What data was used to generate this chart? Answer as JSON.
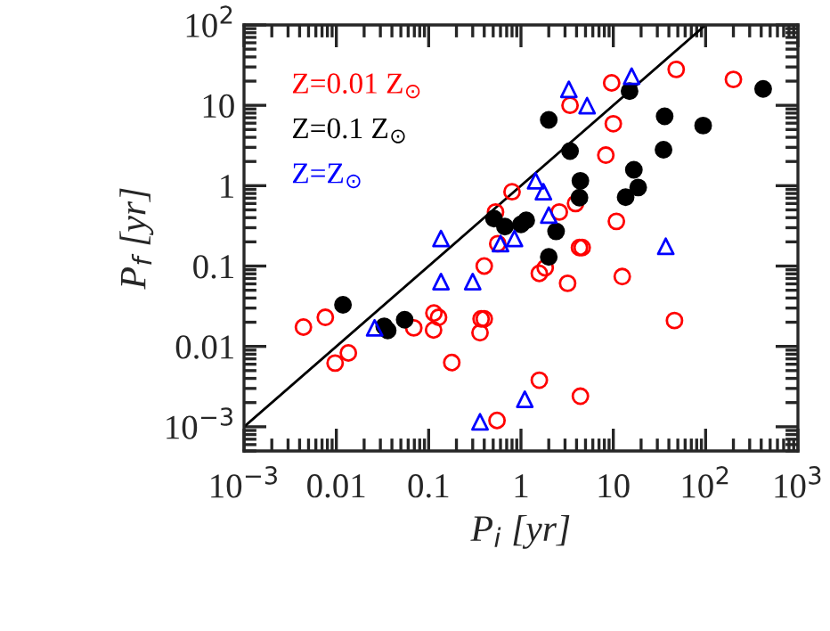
{
  "chart_data": {
    "type": "scatter",
    "xlabel": "P$_{i}$ [yr]",
    "ylabel": "P$_{f}$ [yr]",
    "log": "xy",
    "legend": "top left",
    "grid": false,
    "xlim": [
      0.001,
      1000
    ],
    "ylim": [
      0.0005,
      100
    ],
    "xticks": [
      {
        "value": 0.001,
        "label": "10$^{−3}$"
      },
      0.01,
      0.1,
      1,
      10,
      {
        "value": 100,
        "label": "10$^{2}$"
      },
      {
        "value": 1000,
        "label": "10$^{3}$"
      }
    ],
    "yticks": [
      {
        "value": 0.001,
        "label": "10$^{−3}$"
      },
      0.01,
      0.1,
      1,
      10,
      {
        "value": 100,
        "label": "10$^{2}$"
      }
    ],
    "series": [
      {
        "name": "Z=0.01 Z$_{⊙}$",
        "color": "#ff0000",
        "marker": "circle",
        "x": [
          3.4,
          0.8,
          0.53,
          0.56,
          0.4,
          1.58,
          1.83,
          3.2,
          2.6,
          3.9,
          4.3,
          4.6,
          48,
          200,
          9.6,
          10,
          8.3,
          10.8,
          12.5,
          0.0044,
          0.0076,
          0.0097,
          0.0135,
          0.069,
          0.114,
          0.128,
          0.113,
          0.178,
          0.37,
          0.4,
          0.36,
          46,
          1.58,
          4.4,
          0.55
        ],
        "values": [
          10,
          0.84,
          0.47,
          0.19,
          0.1,
          0.081,
          0.095,
          0.061,
          0.47,
          0.6,
          0.17,
          0.17,
          28,
          21,
          19,
          5.9,
          2.4,
          0.36,
          0.074,
          0.0174,
          0.023,
          0.0062,
          0.0083,
          0.017,
          0.026,
          0.023,
          0.016,
          0.0063,
          0.022,
          0.022,
          0.0148,
          0.021,
          0.0038,
          0.0024,
          0.0012
        ]
      },
      {
        "name": "Z=0.1 Z$_{⊙}$",
        "color": "#000000",
        "marker": "circle",
        "x": [
          2.0,
          3.4,
          4.4,
          4.3,
          0.51,
          0.67,
          1.0,
          1.14,
          2.4,
          2.0,
          15,
          420,
          36,
          94,
          35,
          16.7,
          18.6,
          13.6,
          0.0118,
          0.033,
          0.036,
          0.055
        ],
        "values": [
          6.6,
          2.7,
          1.15,
          0.71,
          0.39,
          0.31,
          0.33,
          0.37,
          0.27,
          0.13,
          15,
          16,
          7.3,
          5.6,
          2.8,
          1.58,
          0.95,
          0.72,
          0.033,
          0.0178,
          0.0158,
          0.0215
        ]
      },
      {
        "name": "Z=Z$_{⊙}$",
        "color": "#0000ff",
        "marker": "triangle",
        "x": [
          3.3,
          5.2,
          1.44,
          1.75,
          2.0,
          0.136,
          0.6,
          0.85,
          0.136,
          0.3,
          15.8,
          37,
          0.026,
          1.1,
          0.36
        ],
        "values": [
          15.8,
          9.9,
          1.15,
          0.84,
          0.43,
          0.22,
          0.19,
          0.22,
          0.064,
          0.064,
          23,
          0.176,
          0.017,
          0.0022,
          0.00115
        ]
      },
      {
        "type": "line",
        "color": "#000000",
        "marker": "none",
        "x": [
          0.001,
          100
        ],
        "values": [
          0.001,
          100
        ]
      }
    ]
  }
}
